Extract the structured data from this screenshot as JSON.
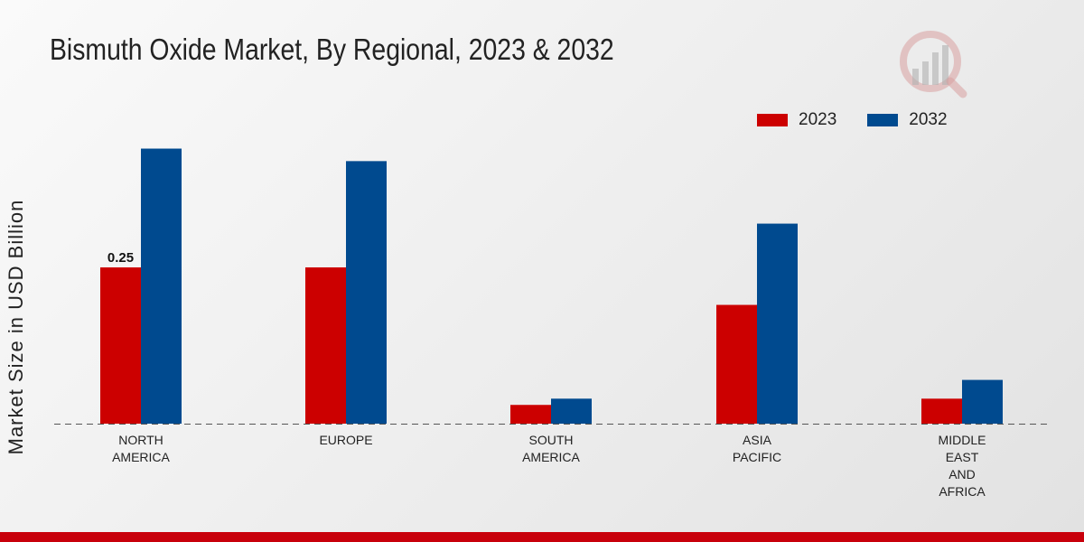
{
  "colors": {
    "series_2023": "#cc0000",
    "series_2032": "#004a8f",
    "footer": "#c8000b"
  },
  "logo": {
    "icon": "market-research-logo-icon"
  },
  "chart_data": {
    "type": "bar",
    "title": "Bismuth Oxide Market, By Regional, 2023 & 2032",
    "xlabel": "",
    "ylabel": "Market Size in USD Billion",
    "ylim": [
      0,
      0.5
    ],
    "grid": false,
    "legend_position": "top-right",
    "categories": [
      [
        "NORTH",
        "AMERICA"
      ],
      [
        "EUROPE"
      ],
      [
        "SOUTH",
        "AMERICA"
      ],
      [
        "ASIA",
        "PACIFIC"
      ],
      [
        "MIDDLE",
        "EAST",
        "AND",
        "AFRICA"
      ]
    ],
    "series": [
      {
        "name": "2023",
        "values": [
          0.25,
          0.25,
          0.03,
          0.19,
          0.04
        ]
      },
      {
        "name": "2032",
        "values": [
          0.44,
          0.42,
          0.04,
          0.32,
          0.07
        ]
      }
    ],
    "annotations": [
      {
        "series": 0,
        "index": 0,
        "text": "0.25"
      }
    ]
  }
}
